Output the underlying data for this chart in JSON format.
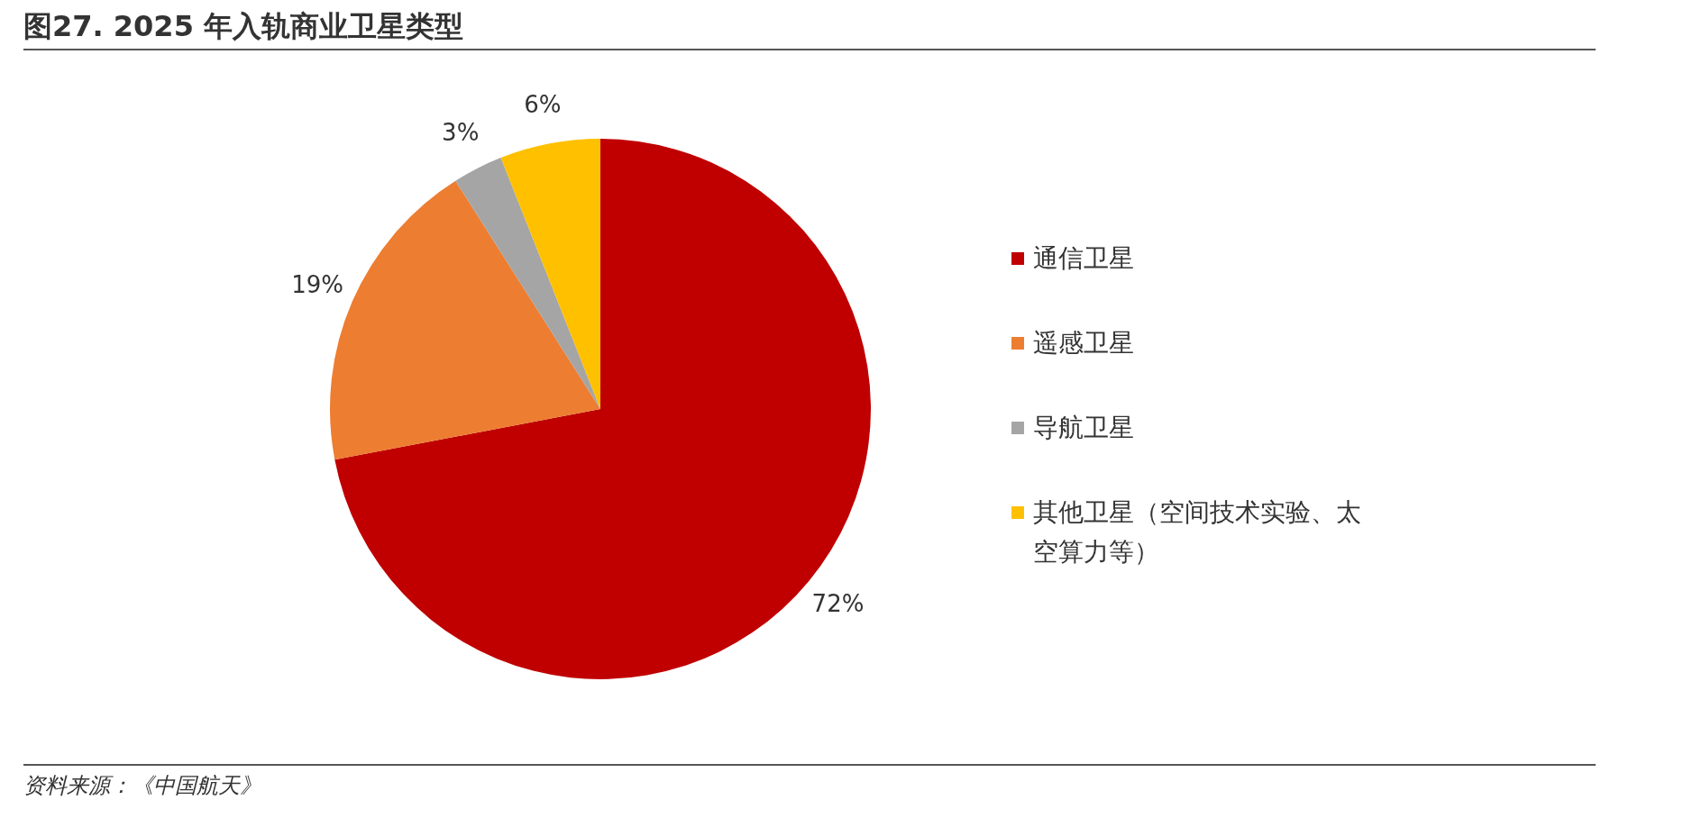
{
  "chart_data": {
    "type": "pie",
    "title": "图27. 2025 年入轨商业卫星类型",
    "categories": [
      "通信卫星",
      "遥感卫星",
      "导航卫星",
      "其他卫星（空间技术实验、太空算力等）"
    ],
    "values": [
      72,
      19,
      3,
      6
    ],
    "colors": [
      "#c00000",
      "#ed7d31",
      "#a5a5a5",
      "#ffc000"
    ],
    "value_labels": [
      "72%",
      "19%",
      "3%",
      "6%"
    ],
    "legend": "right",
    "annotations": [
      "资料来源：《中国航天》"
    ]
  }
}
